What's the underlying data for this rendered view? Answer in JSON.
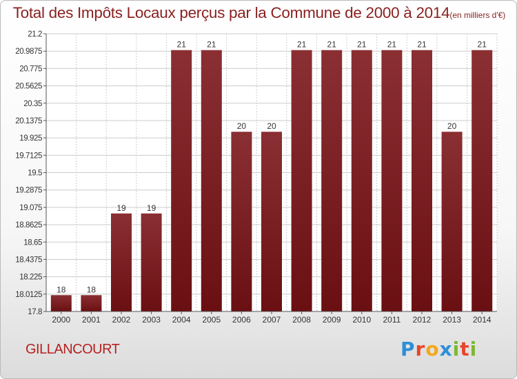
{
  "title": "Total des Impôts Locaux perçus par la Commune de 2000 à 2014",
  "title_unit": "(en milliers d'€)",
  "commune": "GILLANCOURT",
  "brand": {
    "letters": [
      "P",
      "r",
      "o",
      "x",
      "i",
      "t",
      "i"
    ],
    "colors": [
      "#2c8fd6",
      "#e8462a",
      "#f2a81d",
      "#2c8fd6",
      "#7cb82f",
      "#e8462a",
      "#7cb82f"
    ]
  },
  "colors": {
    "bar": "#6a0f12",
    "bar_light": "#8a2f33",
    "grid": "#cccccc",
    "axis": "#555555",
    "title": "#8a1f1f",
    "commune": "#b52020"
  },
  "chart_data": {
    "type": "bar",
    "title": "Total des Impôts Locaux perçus par la Commune de 2000 à 2014",
    "xlabel": "",
    "ylabel": "",
    "categories": [
      "2000",
      "2001",
      "2002",
      "2003",
      "2004",
      "2005",
      "2006",
      "2007",
      "2008",
      "2009",
      "2010",
      "2011",
      "2012",
      "2013",
      "2014"
    ],
    "values": [
      18,
      18,
      19,
      19,
      21,
      21,
      20,
      20,
      21,
      21,
      21,
      21,
      21,
      20,
      21
    ],
    "value_labels": [
      "18",
      "18",
      "19",
      "19",
      "21",
      "21",
      "20",
      "20",
      "21",
      "21",
      "21",
      "21",
      "21",
      "20",
      "21"
    ],
    "ylim": [
      17.8,
      21.2
    ],
    "yticks": [
      17.8,
      18.0125,
      18.225,
      18.4375,
      18.65,
      18.8625,
      19.075,
      19.2875,
      19.5,
      19.7125,
      19.925,
      20.1375,
      20.35,
      20.5625,
      20.775,
      20.9875,
      21.2
    ],
    "ytick_labels": [
      "17.8",
      "18.0125",
      "18.225",
      "18.4375",
      "18.65",
      "18.8625",
      "19.075",
      "19.2875",
      "19.5",
      "19.7125",
      "19.925",
      "20.1375",
      "20.35",
      "20.5625",
      "20.775",
      "20.9875",
      "21.2"
    ],
    "grid": true,
    "legend": "none"
  }
}
